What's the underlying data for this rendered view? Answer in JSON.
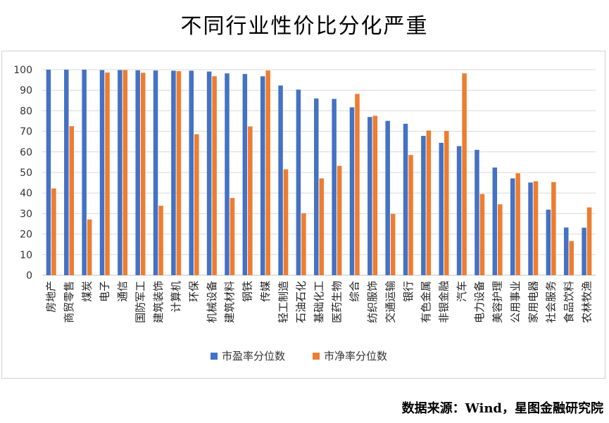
{
  "title": "不同行业性价比分化严重",
  "source": "数据来源：Wind，星图金融研究院",
  "colors": {
    "series1": "#4472C4",
    "series2": "#ED7D31",
    "grid": "#d9d9d9"
  },
  "chart_data": {
    "type": "bar",
    "title": "不同行业性价比分化严重",
    "ylim": [
      0,
      100
    ],
    "yticks": [
      0,
      10,
      20,
      30,
      40,
      50,
      60,
      70,
      80,
      90,
      100
    ],
    "grid": true,
    "legend_position": "bottom",
    "categories": [
      "房地产",
      "商贸零售",
      "煤炭",
      "电子",
      "通信",
      "国防军工",
      "建筑装饰",
      "计算机",
      "环保",
      "机械设备",
      "建筑材料",
      "钢铁",
      "传媒",
      "轻工制造",
      "石油石化",
      "基础化工",
      "医药生物",
      "综合",
      "纺织服饰",
      "交通运输",
      "银行",
      "有色金属",
      "非银金融",
      "汽车",
      "电力设备",
      "美容护理",
      "公用事业",
      "家用电器",
      "社会服务",
      "食品饮料",
      "农林牧渔"
    ],
    "series": [
      {
        "name": "市盈率分位数",
        "color": "#4472C4",
        "values": [
          100,
          100,
          100,
          99.8,
          99.8,
          99.7,
          99.6,
          99.5,
          99.5,
          99.1,
          98.2,
          97.9,
          96.8,
          92.3,
          90.3,
          86,
          85.8,
          81.7,
          77,
          75.1,
          73.7,
          67.8,
          64.4,
          62.8,
          61,
          52.4,
          47.1,
          45.1,
          31.9,
          23.2,
          23.1
        ]
      },
      {
        "name": "市净率分位数",
        "color": "#ED7D31",
        "values": [
          42.2,
          72.5,
          27.1,
          98.6,
          99.8,
          98.5,
          33.8,
          99.3,
          68.6,
          96.8,
          37.6,
          72.4,
          99.6,
          51.5,
          30.1,
          47.1,
          53.2,
          88.2,
          77.6,
          29.8,
          58.5,
          70.4,
          70.2,
          98.2,
          39.5,
          34.5,
          49.6,
          45.7,
          45.3,
          16.6,
          33
        ]
      }
    ]
  }
}
